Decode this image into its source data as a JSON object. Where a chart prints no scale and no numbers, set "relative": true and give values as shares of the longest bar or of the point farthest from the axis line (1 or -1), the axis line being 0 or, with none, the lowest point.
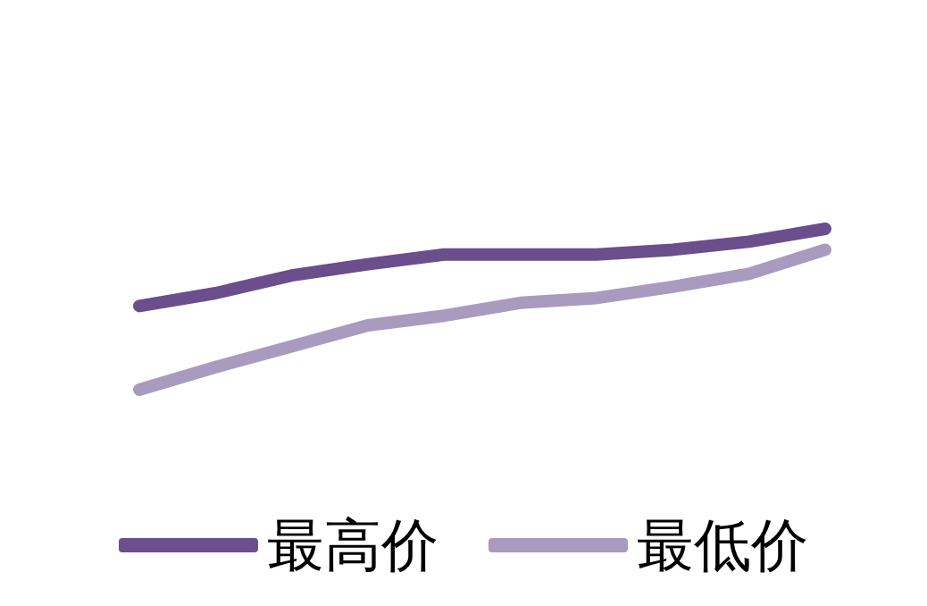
{
  "chart_data": {
    "type": "line",
    "relative": true,
    "categories": [
      null,
      null,
      null,
      null,
      null,
      null,
      null,
      null,
      null,
      null
    ],
    "series": [
      {
        "name": "最高价",
        "color": "#6a4f8c",
        "values": [
          0.52,
          0.6,
          0.71,
          0.78,
          0.84,
          0.84,
          0.84,
          0.87,
          0.92,
          1
        ]
      },
      {
        "name": "最低价",
        "color": "#a99bbf",
        "values": [
          0,
          0.14,
          0.27,
          0.4,
          0.46,
          0.54,
          0.57,
          0.64,
          0.72,
          0.87
        ]
      }
    ],
    "legend": "bottom",
    "grid": false,
    "line_style": "solid"
  }
}
